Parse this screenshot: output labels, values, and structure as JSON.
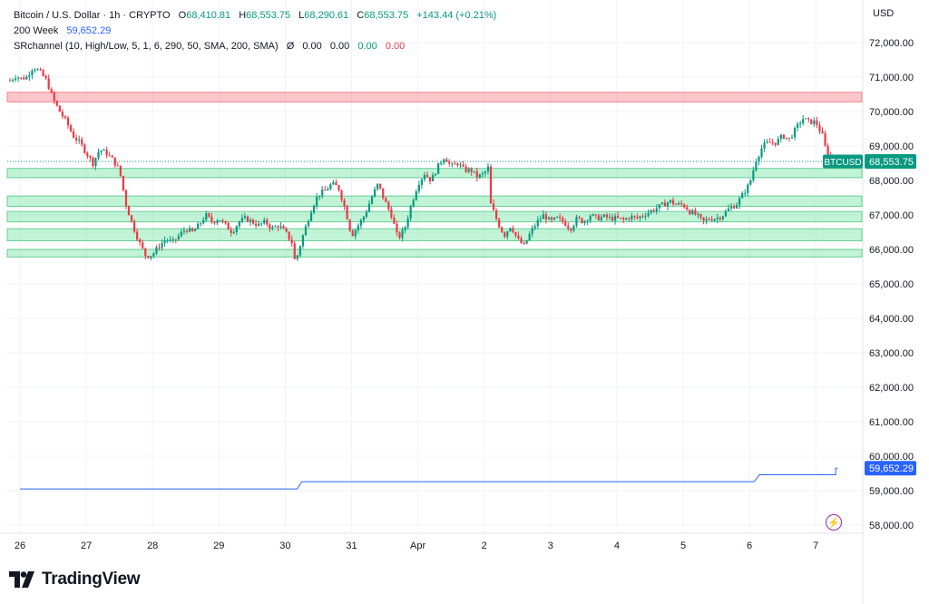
{
  "header": {
    "title": "Bitcoin / U.S. Dollar · 1h · CRYPTO",
    "o_label": "O",
    "o_value": "68,410.81",
    "h_label": "H",
    "h_value": "68,553.75",
    "l_label": "L",
    "l_value": "68,290.61",
    "c_label": "C",
    "c_value": "68,553.75",
    "change": "+143.44 (+0.21%)",
    "ma_label": "200 Week",
    "ma_value": "59,652.29",
    "sr_label": "SRchannel (10, High/Low, 5, 1, 6, 290, 50, SMA, 200, SMA)",
    "sr_symbol": "Ø",
    "sr_v1": "0.00",
    "sr_v2": "0.00",
    "sr_v3": "0.00",
    "sr_v4": "0.00"
  },
  "currency": "USD",
  "brand": "TradingView",
  "colors": {
    "up": "#089981",
    "down": "#f23645",
    "ma": "#2962ff"
  },
  "chart_data": {
    "type": "candlestick",
    "symbol": "BTCUSD",
    "ylim": [
      57600,
      72600
    ],
    "y_ticks": [
      58000,
      59000,
      60000,
      61000,
      62000,
      63000,
      64000,
      65000,
      66000,
      67000,
      68000,
      69000,
      70000,
      71000,
      72000
    ],
    "y_tick_labels": [
      "58,000.00",
      "59,000.00",
      "60,000.00",
      "61,000.00",
      "62,000.00",
      "63,000.00",
      "64,000.00",
      "65,000.00",
      "66,000.00",
      "67,000.00",
      "68,000.00",
      "69,000.00",
      "70,000.00",
      "71,000.00",
      "72,000.00"
    ],
    "x_ticks": [
      "26",
      "27",
      "28",
      "29",
      "30",
      "31",
      "Apr",
      "2",
      "3",
      "4",
      "5",
      "6",
      "7"
    ],
    "last_price": 68553.75,
    "last_price_label": "68,553.75",
    "ma_series": {
      "name": "200 Week",
      "last_label": "59,652.29",
      "segments": [
        {
          "from": 0.0,
          "to": 4.18,
          "value": 59050
        },
        {
          "from": 4.25,
          "to": 11.07,
          "value": 59260
        },
        {
          "from": 11.15,
          "to": 12.3,
          "value": 59460
        },
        {
          "from": 12.3,
          "to": 12.33,
          "value": 59652.29
        }
      ]
    },
    "zones": [
      {
        "kind": "resistance",
        "low": 70280,
        "high": 70560
      },
      {
        "kind": "support",
        "low": 68080,
        "high": 68350
      },
      {
        "kind": "support",
        "low": 67250,
        "high": 67550
      },
      {
        "kind": "support",
        "low": 66800,
        "high": 67100
      },
      {
        "kind": "support",
        "low": 66250,
        "high": 66600
      },
      {
        "kind": "support",
        "low": 65780,
        "high": 66000
      }
    ],
    "price_path": [
      [
        -0.15,
        70900
      ],
      [
        -0.05,
        71050
      ],
      [
        0.0,
        70950
      ],
      [
        0.1,
        71000
      ],
      [
        0.2,
        71300
      ],
      [
        0.3,
        71150
      ],
      [
        0.4,
        70900
      ],
      [
        0.5,
        70350
      ],
      [
        0.6,
        70000
      ],
      [
        0.7,
        69700
      ],
      [
        0.8,
        69300
      ],
      [
        0.9,
        69100
      ],
      [
        1.0,
        68800
      ],
      [
        1.1,
        68500
      ],
      [
        1.2,
        68900
      ],
      [
        1.3,
        68800
      ],
      [
        1.4,
        68600
      ],
      [
        1.5,
        68300
      ],
      [
        1.6,
        67300
      ],
      [
        1.7,
        66700
      ],
      [
        1.8,
        66200
      ],
      [
        1.9,
        65800
      ],
      [
        2.0,
        65850
      ],
      [
        2.1,
        66100
      ],
      [
        2.2,
        66300
      ],
      [
        2.3,
        66200
      ],
      [
        2.4,
        66400
      ],
      [
        2.5,
        66600
      ],
      [
        2.6,
        66500
      ],
      [
        2.7,
        66700
      ],
      [
        2.8,
        67000
      ],
      [
        2.9,
        66800
      ],
      [
        3.0,
        66900
      ],
      [
        3.1,
        66700
      ],
      [
        3.2,
        66500
      ],
      [
        3.3,
        66800
      ],
      [
        3.4,
        66900
      ],
      [
        3.5,
        66800
      ],
      [
        3.6,
        66700
      ],
      [
        3.7,
        66800
      ],
      [
        3.8,
        66600
      ],
      [
        3.9,
        66700
      ],
      [
        4.0,
        66500
      ],
      [
        4.1,
        66200
      ],
      [
        4.15,
        65600
      ],
      [
        4.25,
        66300
      ],
      [
        4.4,
        67200
      ],
      [
        4.5,
        67600
      ],
      [
        4.6,
        67700
      ],
      [
        4.7,
        67900
      ],
      [
        4.8,
        67800
      ],
      [
        4.9,
        67200
      ],
      [
        5.0,
        66400
      ],
      [
        5.1,
        66700
      ],
      [
        5.2,
        67000
      ],
      [
        5.3,
        67500
      ],
      [
        5.4,
        67900
      ],
      [
        5.5,
        67400
      ],
      [
        5.6,
        67000
      ],
      [
        5.7,
        66300
      ],
      [
        5.8,
        66600
      ],
      [
        5.9,
        67300
      ],
      [
        6.0,
        67900
      ],
      [
        6.1,
        68200
      ],
      [
        6.2,
        68000
      ],
      [
        6.3,
        68400
      ],
      [
        6.4,
        68700
      ],
      [
        6.5,
        68400
      ],
      [
        6.6,
        68500
      ],
      [
        6.7,
        68300
      ],
      [
        6.8,
        68300
      ],
      [
        6.9,
        68100
      ],
      [
        7.0,
        68200
      ],
      [
        7.07,
        68400
      ],
      [
        7.1,
        67300
      ],
      [
        7.2,
        66800
      ],
      [
        7.3,
        66400
      ],
      [
        7.4,
        66700
      ],
      [
        7.5,
        66300
      ],
      [
        7.6,
        66100
      ],
      [
        7.7,
        66500
      ],
      [
        7.8,
        66800
      ],
      [
        7.9,
        67000
      ],
      [
        8.0,
        66800
      ],
      [
        8.1,
        66900
      ],
      [
        8.2,
        66800
      ],
      [
        8.3,
        66600
      ],
      [
        8.4,
        66900
      ],
      [
        8.5,
        66800
      ],
      [
        8.6,
        67000
      ],
      [
        8.7,
        66900
      ],
      [
        8.8,
        66950
      ],
      [
        8.9,
        66900
      ],
      [
        9.0,
        66900
      ],
      [
        9.1,
        66850
      ],
      [
        9.2,
        66950
      ],
      [
        9.3,
        66900
      ],
      [
        9.4,
        67000
      ],
      [
        9.5,
        67100
      ],
      [
        9.6,
        67200
      ],
      [
        9.7,
        67300
      ],
      [
        9.8,
        67400
      ],
      [
        9.9,
        67300
      ],
      [
        10.0,
        67300
      ],
      [
        10.1,
        67100
      ],
      [
        10.2,
        67000
      ],
      [
        10.3,
        66800
      ],
      [
        10.4,
        66900
      ],
      [
        10.5,
        66900
      ],
      [
        10.6,
        67000
      ],
      [
        10.7,
        67200
      ],
      [
        10.8,
        67300
      ],
      [
        10.9,
        67600
      ],
      [
        11.0,
        67900
      ],
      [
        11.1,
        68600
      ],
      [
        11.2,
        69000
      ],
      [
        11.3,
        69100
      ],
      [
        11.4,
        69100
      ],
      [
        11.5,
        69300
      ],
      [
        11.6,
        69200
      ],
      [
        11.7,
        69500
      ],
      [
        11.8,
        69800
      ],
      [
        11.9,
        69700
      ],
      [
        12.0,
        69700
      ],
      [
        12.1,
        69300
      ],
      [
        12.15,
        68900
      ],
      [
        12.25,
        68550
      ]
    ]
  }
}
